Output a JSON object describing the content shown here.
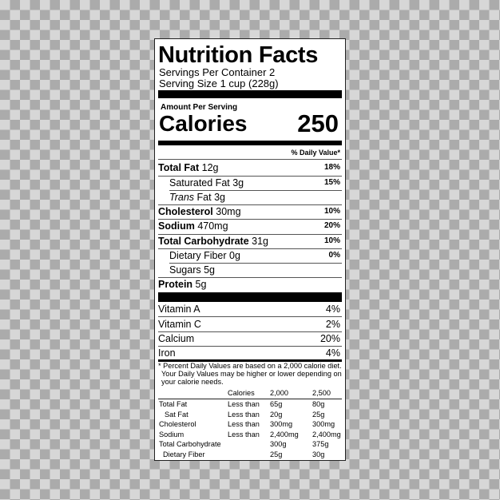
{
  "header": {
    "title": "Nutrition Facts",
    "servings": "Servings Per Container 2",
    "serving_size": "Serving Size 1 cup (228g)"
  },
  "calories": {
    "amount_per_serving": "Amount Per Serving",
    "label": "Calories",
    "value": "250"
  },
  "daily_value_header": "% Daily Value*",
  "nutrients": [
    {
      "name": "Total Fat",
      "amount": "12g",
      "dv": "18%"
    },
    {
      "name": "Saturated Fat",
      "amount": "3g",
      "dv": "15%"
    },
    {
      "name": "Trans",
      "name_suffix": "Fat",
      "amount": "3g",
      "dv": ""
    },
    {
      "name": "Cholesterol",
      "amount": "30mg",
      "dv": "10%"
    },
    {
      "name": "Sodium",
      "amount": "470mg",
      "dv": "20%"
    },
    {
      "name": "Total Carbohydrate",
      "amount": "31g",
      "dv": "10%"
    },
    {
      "name": "Dietary Fiber",
      "amount": "0g",
      "dv": "0%"
    },
    {
      "name": "Sugars",
      "amount": "5g",
      "dv": ""
    },
    {
      "name": "Protein",
      "amount": "5g",
      "dv": ""
    }
  ],
  "vitamins": [
    {
      "name": "Vitamin A",
      "dv": "4%"
    },
    {
      "name": "Vitamin C",
      "dv": "2%"
    },
    {
      "name": "Calcium",
      "dv": "20%"
    },
    {
      "name": "Iron",
      "dv": "4%"
    }
  ],
  "footnote": [
    "* Percent Daily Values are based on a 2,000 calorie diet.",
    "Your Daily Values may be higher or lower depending on",
    "your calorie needs."
  ],
  "reference_table": {
    "header": [
      "",
      "Calories",
      "2,000",
      "2,500"
    ],
    "rows": [
      [
        "Total Fat",
        "Less than",
        "65g",
        "80g"
      ],
      [
        "Sat Fat",
        "Less than",
        "20g",
        "25g"
      ],
      [
        "Cholesterol",
        "Less than",
        "300mg",
        "300mg"
      ],
      [
        "Sodium",
        "Less than",
        "2,400mg",
        "2,400mg"
      ],
      [
        "Total Carbohydrate",
        "",
        "300g",
        "375g"
      ],
      [
        "Dietary Fiber",
        "",
        "25g",
        "30g"
      ]
    ]
  }
}
